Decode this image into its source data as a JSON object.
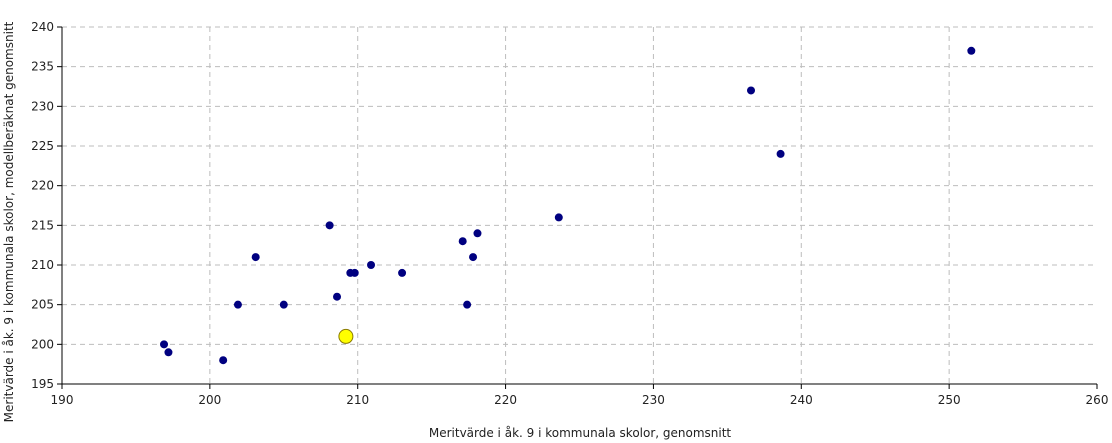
{
  "chart_data": {
    "type": "scatter",
    "title": "",
    "xlabel": "Meritvärde i åk. 9 i kommunala skolor, genomsnitt",
    "ylabel": "Meritvärde i åk. 9 i kommunala skolor, modellberäknat genomsnitt",
    "xlim": [
      190,
      260
    ],
    "ylim": [
      195,
      240
    ],
    "x_ticks": [
      190,
      200,
      210,
      220,
      230,
      240,
      250,
      260
    ],
    "y_ticks": [
      195,
      200,
      205,
      210,
      215,
      220,
      225,
      230,
      235,
      240
    ],
    "grid": true,
    "legend": "none",
    "colors": {
      "point": "#000080",
      "highlight": "#ffff00",
      "highlight_border": "#8a7a00",
      "grid": "#bdbdbd",
      "axis": "#000000"
    },
    "points": [
      {
        "x": 196.9,
        "y": 200
      },
      {
        "x": 197.2,
        "y": 199
      },
      {
        "x": 200.9,
        "y": 198
      },
      {
        "x": 201.9,
        "y": 205
      },
      {
        "x": 203.1,
        "y": 211
      },
      {
        "x": 205.0,
        "y": 205
      },
      {
        "x": 208.1,
        "y": 215
      },
      {
        "x": 208.6,
        "y": 206
      },
      {
        "x": 209.5,
        "y": 209
      },
      {
        "x": 209.8,
        "y": 209
      },
      {
        "x": 210.9,
        "y": 210
      },
      {
        "x": 213.0,
        "y": 209
      },
      {
        "x": 217.1,
        "y": 213
      },
      {
        "x": 217.4,
        "y": 205
      },
      {
        "x": 217.8,
        "y": 211
      },
      {
        "x": 218.1,
        "y": 214
      },
      {
        "x": 223.6,
        "y": 216
      },
      {
        "x": 236.6,
        "y": 232
      },
      {
        "x": 238.6,
        "y": 224
      },
      {
        "x": 251.5,
        "y": 237
      }
    ],
    "highlight": {
      "x": 209.2,
      "y": 201
    }
  }
}
